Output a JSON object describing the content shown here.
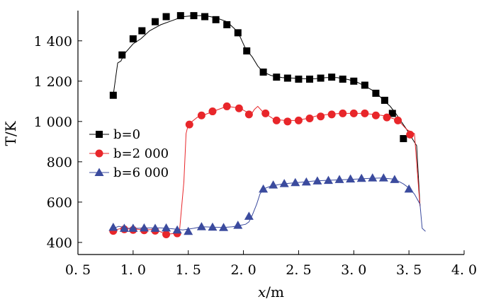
{
  "chart_data": {
    "type": "line",
    "xlabel_var": "x",
    "xlabel_unit": "/m",
    "ylabel": "T/K",
    "xlim": [
      0.5,
      4.0
    ],
    "ylim": [
      340,
      1550
    ],
    "x_ticks": [
      0.5,
      1.0,
      1.5,
      2.0,
      2.5,
      3.0,
      3.5,
      4.0
    ],
    "x_tick_labels": [
      "0. 5",
      "1. 0",
      "1. 5",
      "2. 0",
      "2. 5",
      "3. 0",
      "3. 5",
      "4. 0"
    ],
    "y_ticks": [
      400,
      600,
      800,
      1000,
      1200,
      1400
    ],
    "y_tick_labels": [
      "400",
      "600",
      "800",
      "1 000",
      "1 200",
      "1 400"
    ],
    "grid": false,
    "legend_position": "left-middle",
    "series": [
      {
        "name": "b=0",
        "color": "#000000",
        "marker": "square",
        "line": [
          [
            0.82,
            1130
          ],
          [
            0.86,
            1290
          ],
          [
            0.89,
            1300
          ],
          [
            0.92,
            1335
          ],
          [
            1.0,
            1385
          ],
          [
            1.07,
            1410
          ],
          [
            1.15,
            1450
          ],
          [
            1.25,
            1480
          ],
          [
            1.35,
            1500
          ],
          [
            1.45,
            1520
          ],
          [
            1.55,
            1525
          ],
          [
            1.65,
            1525
          ],
          [
            1.75,
            1515
          ],
          [
            1.85,
            1495
          ],
          [
            1.92,
            1460
          ],
          [
            1.97,
            1420
          ],
          [
            2.02,
            1360
          ],
          [
            2.08,
            1320
          ],
          [
            2.13,
            1275
          ],
          [
            2.18,
            1245
          ],
          [
            2.25,
            1228
          ],
          [
            2.35,
            1218
          ],
          [
            2.45,
            1215
          ],
          [
            2.55,
            1212
          ],
          [
            2.65,
            1212
          ],
          [
            2.75,
            1218
          ],
          [
            2.85,
            1218
          ],
          [
            2.95,
            1208
          ],
          [
            3.03,
            1195
          ],
          [
            3.12,
            1170
          ],
          [
            3.2,
            1145
          ],
          [
            3.27,
            1105
          ],
          [
            3.33,
            1075
          ],
          [
            3.38,
            1040
          ],
          [
            3.43,
            1000
          ],
          [
            3.48,
            960
          ],
          [
            3.53,
            915
          ],
          [
            3.57,
            880
          ],
          [
            3.6,
            585
          ]
        ],
        "markers": [
          [
            0.82,
            1130
          ],
          [
            0.9,
            1330
          ],
          [
            1.0,
            1410
          ],
          [
            1.08,
            1450
          ],
          [
            1.2,
            1495
          ],
          [
            1.3,
            1520
          ],
          [
            1.43,
            1525
          ],
          [
            1.55,
            1525
          ],
          [
            1.65,
            1520
          ],
          [
            1.75,
            1505
          ],
          [
            1.85,
            1480
          ],
          [
            1.95,
            1440
          ],
          [
            2.03,
            1350
          ],
          [
            2.18,
            1245
          ],
          [
            2.3,
            1220
          ],
          [
            2.4,
            1215
          ],
          [
            2.5,
            1210
          ],
          [
            2.6,
            1210
          ],
          [
            2.7,
            1215
          ],
          [
            2.8,
            1220
          ],
          [
            2.9,
            1210
          ],
          [
            3.0,
            1200
          ],
          [
            3.1,
            1180
          ],
          [
            3.2,
            1140
          ],
          [
            3.28,
            1105
          ],
          [
            3.35,
            1040
          ],
          [
            3.45,
            915
          ]
        ]
      },
      {
        "name": "b=2 000",
        "color": "#e8262a",
        "marker": "circle",
        "line": [
          [
            0.82,
            460
          ],
          [
            0.9,
            470
          ],
          [
            1.0,
            468
          ],
          [
            1.1,
            462
          ],
          [
            1.2,
            465
          ],
          [
            1.3,
            440
          ],
          [
            1.38,
            445
          ],
          [
            1.42,
            455
          ],
          [
            1.46,
            700
          ],
          [
            1.48,
            940
          ],
          [
            1.5,
            985
          ],
          [
            1.58,
            1020
          ],
          [
            1.68,
            1040
          ],
          [
            1.75,
            1055
          ],
          [
            1.85,
            1075
          ],
          [
            1.92,
            1070
          ],
          [
            1.97,
            1065
          ],
          [
            2.02,
            1050
          ],
          [
            2.07,
            1035
          ],
          [
            2.1,
            1060
          ],
          [
            2.13,
            1075
          ],
          [
            2.18,
            1045
          ],
          [
            2.28,
            1010
          ],
          [
            2.38,
            1005
          ],
          [
            2.48,
            1005
          ],
          [
            2.58,
            1015
          ],
          [
            2.68,
            1030
          ],
          [
            2.78,
            1035
          ],
          [
            2.88,
            1040
          ],
          [
            2.98,
            1040
          ],
          [
            3.08,
            1040
          ],
          [
            3.18,
            1035
          ],
          [
            3.28,
            1028
          ],
          [
            3.38,
            1010
          ],
          [
            3.43,
            990
          ],
          [
            3.48,
            960
          ],
          [
            3.55,
            940
          ],
          [
            3.6,
            580
          ]
        ],
        "markers": [
          [
            0.82,
            457
          ],
          [
            0.92,
            465
          ],
          [
            1.0,
            462
          ],
          [
            1.1,
            460
          ],
          [
            1.2,
            458
          ],
          [
            1.3,
            440
          ],
          [
            1.4,
            445
          ],
          [
            1.51,
            985
          ],
          [
            1.62,
            1030
          ],
          [
            1.72,
            1050
          ],
          [
            1.85,
            1075
          ],
          [
            1.96,
            1065
          ],
          [
            2.05,
            1035
          ],
          [
            2.2,
            1040
          ],
          [
            2.3,
            1005
          ],
          [
            2.4,
            1000
          ],
          [
            2.5,
            1005
          ],
          [
            2.6,
            1015
          ],
          [
            2.7,
            1025
          ],
          [
            2.8,
            1035
          ],
          [
            2.9,
            1040
          ],
          [
            3.0,
            1040
          ],
          [
            3.1,
            1040
          ],
          [
            3.2,
            1030
          ],
          [
            3.3,
            1020
          ],
          [
            3.4,
            1005
          ],
          [
            3.51,
            935
          ]
        ]
      },
      {
        "name": "b=6 000",
        "color": "#3b4b9e",
        "marker": "triangle",
        "line": [
          [
            0.82,
            470
          ],
          [
            0.87,
            480
          ],
          [
            0.95,
            470
          ],
          [
            1.05,
            470
          ],
          [
            1.15,
            472
          ],
          [
            1.25,
            472
          ],
          [
            1.35,
            468
          ],
          [
            1.45,
            462
          ],
          [
            1.55,
            470
          ],
          [
            1.62,
            478
          ],
          [
            1.72,
            476
          ],
          [
            1.82,
            474
          ],
          [
            1.9,
            478
          ],
          [
            1.97,
            485
          ],
          [
            2.02,
            490
          ],
          [
            2.05,
            502
          ],
          [
            2.08,
            535
          ],
          [
            2.12,
            590
          ],
          [
            2.15,
            640
          ],
          [
            2.18,
            665
          ],
          [
            2.25,
            680
          ],
          [
            2.35,
            690
          ],
          [
            2.45,
            695
          ],
          [
            2.55,
            700
          ],
          [
            2.65,
            705
          ],
          [
            2.75,
            708
          ],
          [
            2.85,
            710
          ],
          [
            2.95,
            712
          ],
          [
            3.05,
            715
          ],
          [
            3.15,
            718
          ],
          [
            3.25,
            720
          ],
          [
            3.35,
            715
          ],
          [
            3.4,
            705
          ],
          [
            3.45,
            690
          ],
          [
            3.5,
            670
          ],
          [
            3.55,
            640
          ],
          [
            3.6,
            590
          ],
          [
            3.62,
            470
          ],
          [
            3.65,
            455
          ]
        ],
        "markers": [
          [
            0.82,
            475
          ],
          [
            0.92,
            470
          ],
          [
            1.0,
            470
          ],
          [
            1.1,
            472
          ],
          [
            1.2,
            470
          ],
          [
            1.3,
            472
          ],
          [
            1.4,
            462
          ],
          [
            1.5,
            455
          ],
          [
            1.62,
            478
          ],
          [
            1.72,
            476
          ],
          [
            1.82,
            474
          ],
          [
            1.95,
            485
          ],
          [
            2.05,
            530
          ],
          [
            2.18,
            665
          ],
          [
            2.27,
            685
          ],
          [
            2.37,
            692
          ],
          [
            2.47,
            697
          ],
          [
            2.57,
            700
          ],
          [
            2.67,
            705
          ],
          [
            2.77,
            708
          ],
          [
            2.87,
            712
          ],
          [
            2.97,
            715
          ],
          [
            3.07,
            718
          ],
          [
            3.17,
            720
          ],
          [
            3.27,
            720
          ],
          [
            3.37,
            712
          ],
          [
            3.5,
            665
          ]
        ]
      }
    ]
  }
}
